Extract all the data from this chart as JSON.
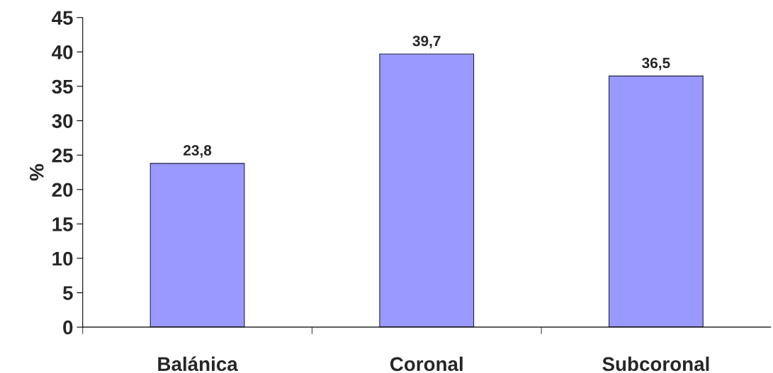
{
  "chart_data": {
    "type": "bar",
    "ylabel": "%",
    "categories": [
      "Balánica",
      "Coronal",
      "Subcoronal"
    ],
    "values": [
      23.8,
      39.7,
      36.5
    ],
    "value_labels": [
      "23,8",
      "39,7",
      "36,5"
    ],
    "color": "#9999ff",
    "ylim": [
      0,
      45
    ],
    "yticks": [
      0,
      5,
      10,
      15,
      20,
      25,
      30,
      35,
      40,
      45
    ],
    "grid": false,
    "legend": false
  }
}
